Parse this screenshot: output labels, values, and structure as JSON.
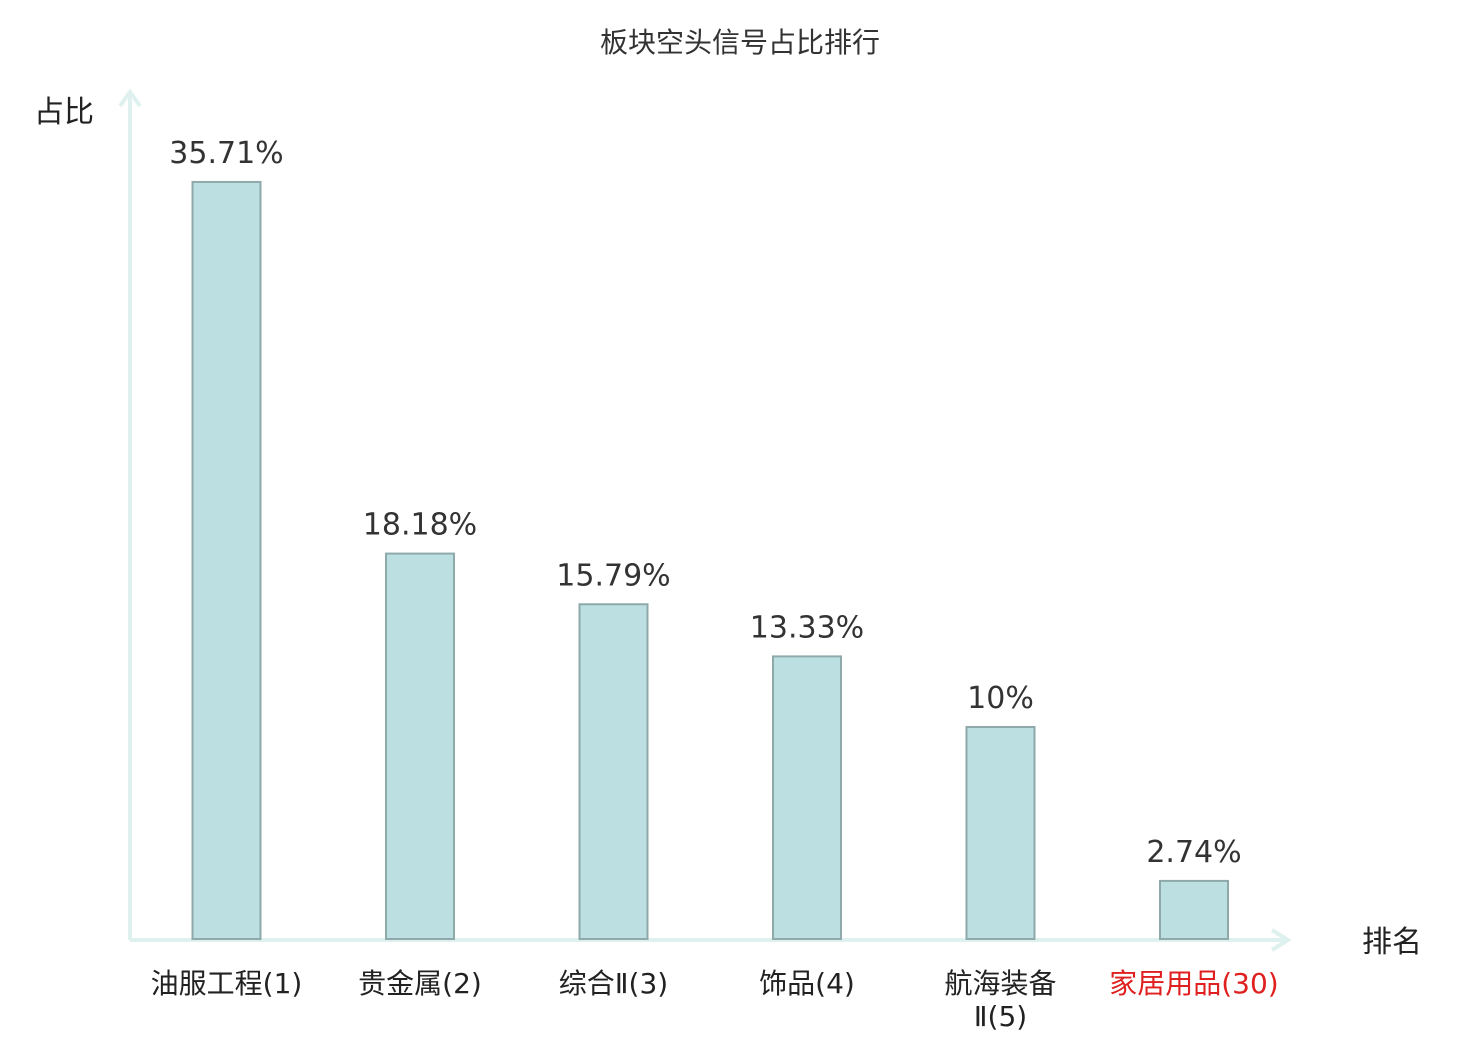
{
  "chart_data": {
    "type": "bar",
    "title": "板块空头信号占比排行",
    "xlabel": "排名",
    "ylabel": "占比",
    "categories": [
      [
        "油服工程(1)"
      ],
      [
        "贵金属(2)"
      ],
      [
        "综合Ⅱ(3)"
      ],
      [
        "饰品(4)"
      ],
      [
        "航海装备",
        "Ⅱ(5)"
      ],
      [
        "家居用品(30)"
      ]
    ],
    "values": [
      35.71,
      18.18,
      15.79,
      13.33,
      10,
      2.74
    ],
    "value_labels": [
      "35.71%",
      "18.18%",
      "15.79%",
      "13.33%",
      "10%",
      "2.74%"
    ],
    "highlight_index": 5,
    "ylim": [
      0,
      40
    ],
    "grid": false,
    "legend": "none"
  },
  "colors": {
    "bar_fill": "#bce0e2",
    "bar_stroke": "#8fa9aa",
    "axis": "#dff1ee",
    "highlight_text": "#e02020",
    "text": "#222222"
  }
}
